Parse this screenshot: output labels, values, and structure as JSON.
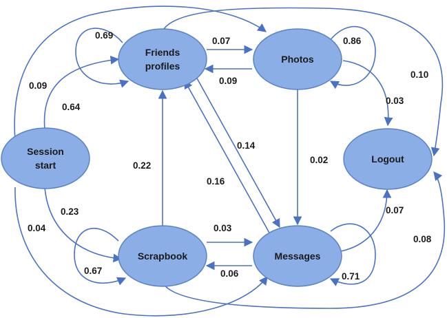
{
  "colors": {
    "node_fill": "#8aaee5",
    "node_stroke": "#5a82c6",
    "edge": "#4a72c4",
    "text": "#1a1a1a"
  },
  "nodes": {
    "session": {
      "line1": "Session",
      "line2": "start"
    },
    "friends": {
      "line1": "Friends",
      "line2": "profiles"
    },
    "photos": {
      "label": "Photos"
    },
    "logout": {
      "label": "Logout"
    },
    "scrapbook": {
      "label": "Scrapbook"
    },
    "messages": {
      "label": "Messages"
    }
  },
  "edges": {
    "friends_self": "0.69",
    "friends_to_photos": "0.07",
    "photos_to_friends": "0.09",
    "photos_self": "0.86",
    "session_to_photos": "0.09",
    "session_to_friends": "0.64",
    "scrapbook_to_logout": "0.10",
    "photos_to_logout": "0.03",
    "friends_to_messages": "0.14",
    "messages_to_friends": "0.16",
    "scrapbook_to_friends": "0.22",
    "photos_to_messages": "0.02",
    "session_to_scrapbook": "0.23",
    "session_to_messages": "0.04",
    "scrapbook_to_messages": "0.03",
    "messages_to_scrapbook": "0.06",
    "messages_to_logout": "0.07",
    "messages_self_to_logout_outer": "0.08",
    "scrapbook_self": "0.67",
    "messages_self": "0.71"
  }
}
